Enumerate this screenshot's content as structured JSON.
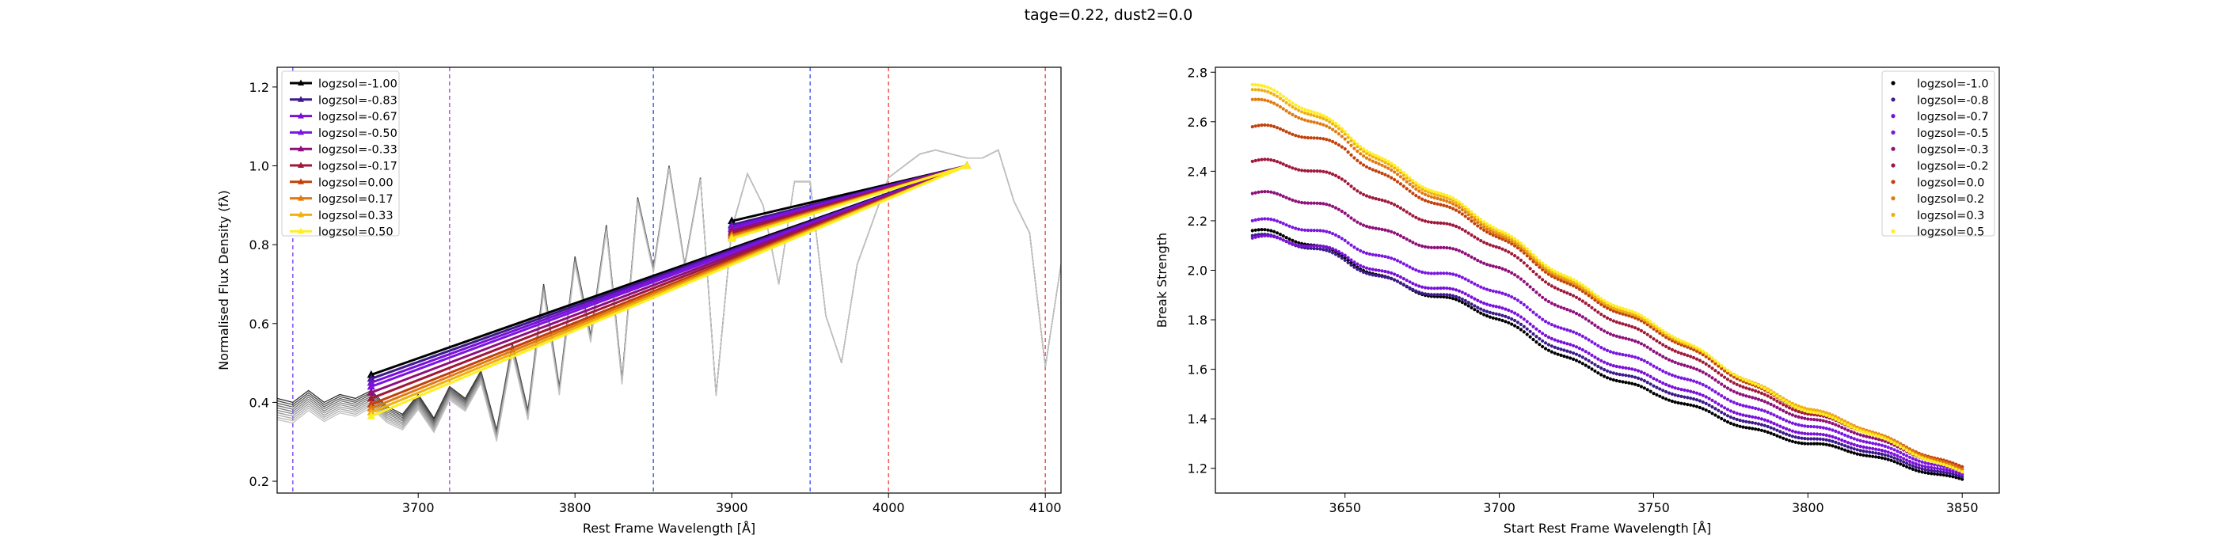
{
  "suptitle": "tage=0.22, dust2=0.0",
  "colors": [
    "#000000",
    "#3d1a8c",
    "#7a10d8",
    "#7a16e0",
    "#8f0f7a",
    "#a0183a",
    "#c2410a",
    "#e07a10",
    "#f0b010",
    "#ffee20"
  ],
  "chart_data": [
    {
      "type": "line",
      "title": "",
      "xlabel": "Rest Frame Wavelength [$\\AA$]",
      "ylabel": "Normalised Flux Density ($f_\\lambda$)",
      "xlim": [
        3610,
        4110
      ],
      "ylim": [
        0.17,
        1.25
      ],
      "xticks": [
        3700,
        3800,
        3900,
        4000,
        4100
      ],
      "yticks": [
        0.2,
        0.4,
        0.6,
        0.8,
        1.0,
        1.2
      ],
      "grid": false,
      "legend": "top-left",
      "vlines": [
        {
          "x": 3620,
          "color": "#8b5cf6"
        },
        {
          "x": 3720,
          "color": "#c65cf0"
        },
        {
          "x": 3850,
          "color": "#5a6cf0"
        },
        {
          "x": 3950,
          "color": "#5a6cf0"
        },
        {
          "x": 4000,
          "color": "#f06060"
        },
        {
          "x": 4100,
          "color": "#f06060"
        }
      ],
      "spectrum_x": [
        3610,
        3620,
        3630,
        3640,
        3650,
        3660,
        3670,
        3680,
        3690,
        3700,
        3710,
        3720,
        3730,
        3740,
        3750,
        3760,
        3770,
        3780,
        3790,
        3800,
        3810,
        3820,
        3830,
        3840,
        3850,
        3860,
        3870,
        3880,
        3890,
        3900,
        3910,
        3920,
        3930,
        3940,
        3950,
        3960,
        3970,
        3980,
        3990,
        4000,
        4010,
        4020,
        4030,
        4040,
        4050,
        4060,
        4070,
        4080,
        4090,
        4100,
        4110
      ],
      "spectrum_y": [
        0.41,
        0.4,
        0.43,
        0.4,
        0.42,
        0.41,
        0.43,
        0.39,
        0.37,
        0.42,
        0.36,
        0.44,
        0.41,
        0.48,
        0.33,
        0.55,
        0.38,
        0.7,
        0.44,
        0.77,
        0.57,
        0.85,
        0.46,
        0.92,
        0.74,
        1.0,
        0.75,
        0.97,
        0.42,
        0.84,
        0.98,
        0.9,
        0.7,
        0.96,
        0.96,
        0.62,
        0.5,
        0.75,
        0.86,
        0.97,
        1.0,
        1.03,
        1.04,
        1.03,
        1.02,
        1.02,
        1.04,
        0.91,
        0.83,
        0.49,
        0.75
      ],
      "spectrum_offsets": [
        0.0,
        0.006,
        0.012,
        0.018,
        0.024,
        0.03,
        0.036,
        0.042,
        0.048,
        0.054
      ],
      "series": [
        {
          "name": "logzsol=-1.00",
          "start": [
            3670,
            0.47
          ],
          "end": [
            3900,
            0.86
          ]
        },
        {
          "name": "logzsol=-0.83",
          "start": [
            3670,
            0.46
          ],
          "end": [
            3900,
            0.85
          ]
        },
        {
          "name": "logzsol=-0.67",
          "start": [
            3670,
            0.45
          ],
          "end": [
            3900,
            0.845
          ]
        },
        {
          "name": "logzsol=-0.50",
          "start": [
            3670,
            0.44
          ],
          "end": [
            3900,
            0.84
          ]
        },
        {
          "name": "logzsol=-0.33",
          "start": [
            3670,
            0.425
          ],
          "end": [
            3900,
            0.835
          ]
        },
        {
          "name": "logzsol=-0.17",
          "start": [
            3670,
            0.41
          ],
          "end": [
            3900,
            0.83
          ]
        },
        {
          "name": "logzsol=0.00",
          "start": [
            3670,
            0.395
          ],
          "end": [
            3900,
            0.825
          ]
        },
        {
          "name": "logzsol=0.17",
          "start": [
            3670,
            0.385
          ],
          "end": [
            3900,
            0.822
          ]
        },
        {
          "name": "logzsol=0.33",
          "start": [
            3670,
            0.375
          ],
          "end": [
            3900,
            0.818
          ]
        },
        {
          "name": "logzsol=0.50",
          "start": [
            3670,
            0.365
          ],
          "end": [
            3900,
            0.815
          ]
        }
      ],
      "line_end": [
        4050,
        1.0
      ]
    },
    {
      "type": "scatter",
      "title": "",
      "xlabel": "Start Rest Frame Wavelength [$\\AA$]",
      "ylabel": "Break Strength",
      "xlim": [
        3608,
        3862
      ],
      "ylim": [
        1.1,
        2.82
      ],
      "xticks": [
        3650,
        3700,
        3750,
        3800,
        3850
      ],
      "yticks": [
        1.2,
        1.4,
        1.6,
        1.8,
        2.0,
        2.2,
        2.4,
        2.6,
        2.8
      ],
      "grid": false,
      "legend": "top-right",
      "x_range": [
        3620,
        3850
      ],
      "series": [
        {
          "name": "logzsol=-1.0",
          "values_at_x": [
            [
              3620,
              2.16
            ],
            [
              3650,
              2.05
            ],
            [
              3700,
              1.79
            ],
            [
              3750,
              1.49
            ],
            [
              3800,
              1.3
            ],
            [
              3850,
              1.16
            ]
          ]
        },
        {
          "name": "logzsol=-0.8",
          "values_at_x": [
            [
              3620,
              2.14
            ],
            [
              3650,
              2.04
            ],
            [
              3700,
              1.81
            ],
            [
              3750,
              1.52
            ],
            [
              3800,
              1.32
            ],
            [
              3850,
              1.17
            ]
          ]
        },
        {
          "name": "logzsol=-0.7",
          "values_at_x": [
            [
              3620,
              2.13
            ],
            [
              3650,
              2.06
            ],
            [
              3700,
              1.84
            ],
            [
              3750,
              1.55
            ],
            [
              3800,
              1.34
            ],
            [
              3850,
              1.18
            ]
          ]
        },
        {
          "name": "logzsol=-0.5",
          "values_at_x": [
            [
              3620,
              2.2
            ],
            [
              3650,
              2.12
            ],
            [
              3700,
              1.9
            ],
            [
              3750,
              1.6
            ],
            [
              3800,
              1.37
            ],
            [
              3850,
              1.19
            ]
          ]
        },
        {
          "name": "logzsol=-0.3",
          "values_at_x": [
            [
              3620,
              2.31
            ],
            [
              3650,
              2.23
            ],
            [
              3700,
              2.0
            ],
            [
              3750,
              1.66
            ],
            [
              3800,
              1.4
            ],
            [
              3850,
              1.2
            ]
          ]
        },
        {
          "name": "logzsol=-0.2",
          "values_at_x": [
            [
              3620,
              2.44
            ],
            [
              3650,
              2.36
            ],
            [
              3700,
              2.08
            ],
            [
              3750,
              1.71
            ],
            [
              3800,
              1.42
            ],
            [
              3850,
              1.21
            ]
          ]
        },
        {
          "name": "logzsol=0.0",
          "values_at_x": [
            [
              3620,
              2.58
            ],
            [
              3650,
              2.49
            ],
            [
              3700,
              2.12
            ],
            [
              3750,
              1.75
            ],
            [
              3800,
              1.43
            ],
            [
              3850,
              1.21
            ]
          ]
        },
        {
          "name": "logzsol=0.2",
          "values_at_x": [
            [
              3620,
              2.69
            ],
            [
              3650,
              2.53
            ],
            [
              3700,
              2.13
            ],
            [
              3750,
              1.76
            ],
            [
              3800,
              1.44
            ],
            [
              3850,
              1.2
            ]
          ]
        },
        {
          "name": "logzsol=0.3",
          "values_at_x": [
            [
              3620,
              2.73
            ],
            [
              3650,
              2.55
            ],
            [
              3700,
              2.14
            ],
            [
              3750,
              1.76
            ],
            [
              3800,
              1.44
            ],
            [
              3850,
              1.19
            ]
          ]
        },
        {
          "name": "logzsol=0.5",
          "values_at_x": [
            [
              3620,
              2.75
            ],
            [
              3650,
              2.56
            ],
            [
              3700,
              2.15
            ],
            [
              3750,
              1.77
            ],
            [
              3800,
              1.43
            ],
            [
              3850,
              1.19
            ]
          ]
        }
      ]
    }
  ]
}
